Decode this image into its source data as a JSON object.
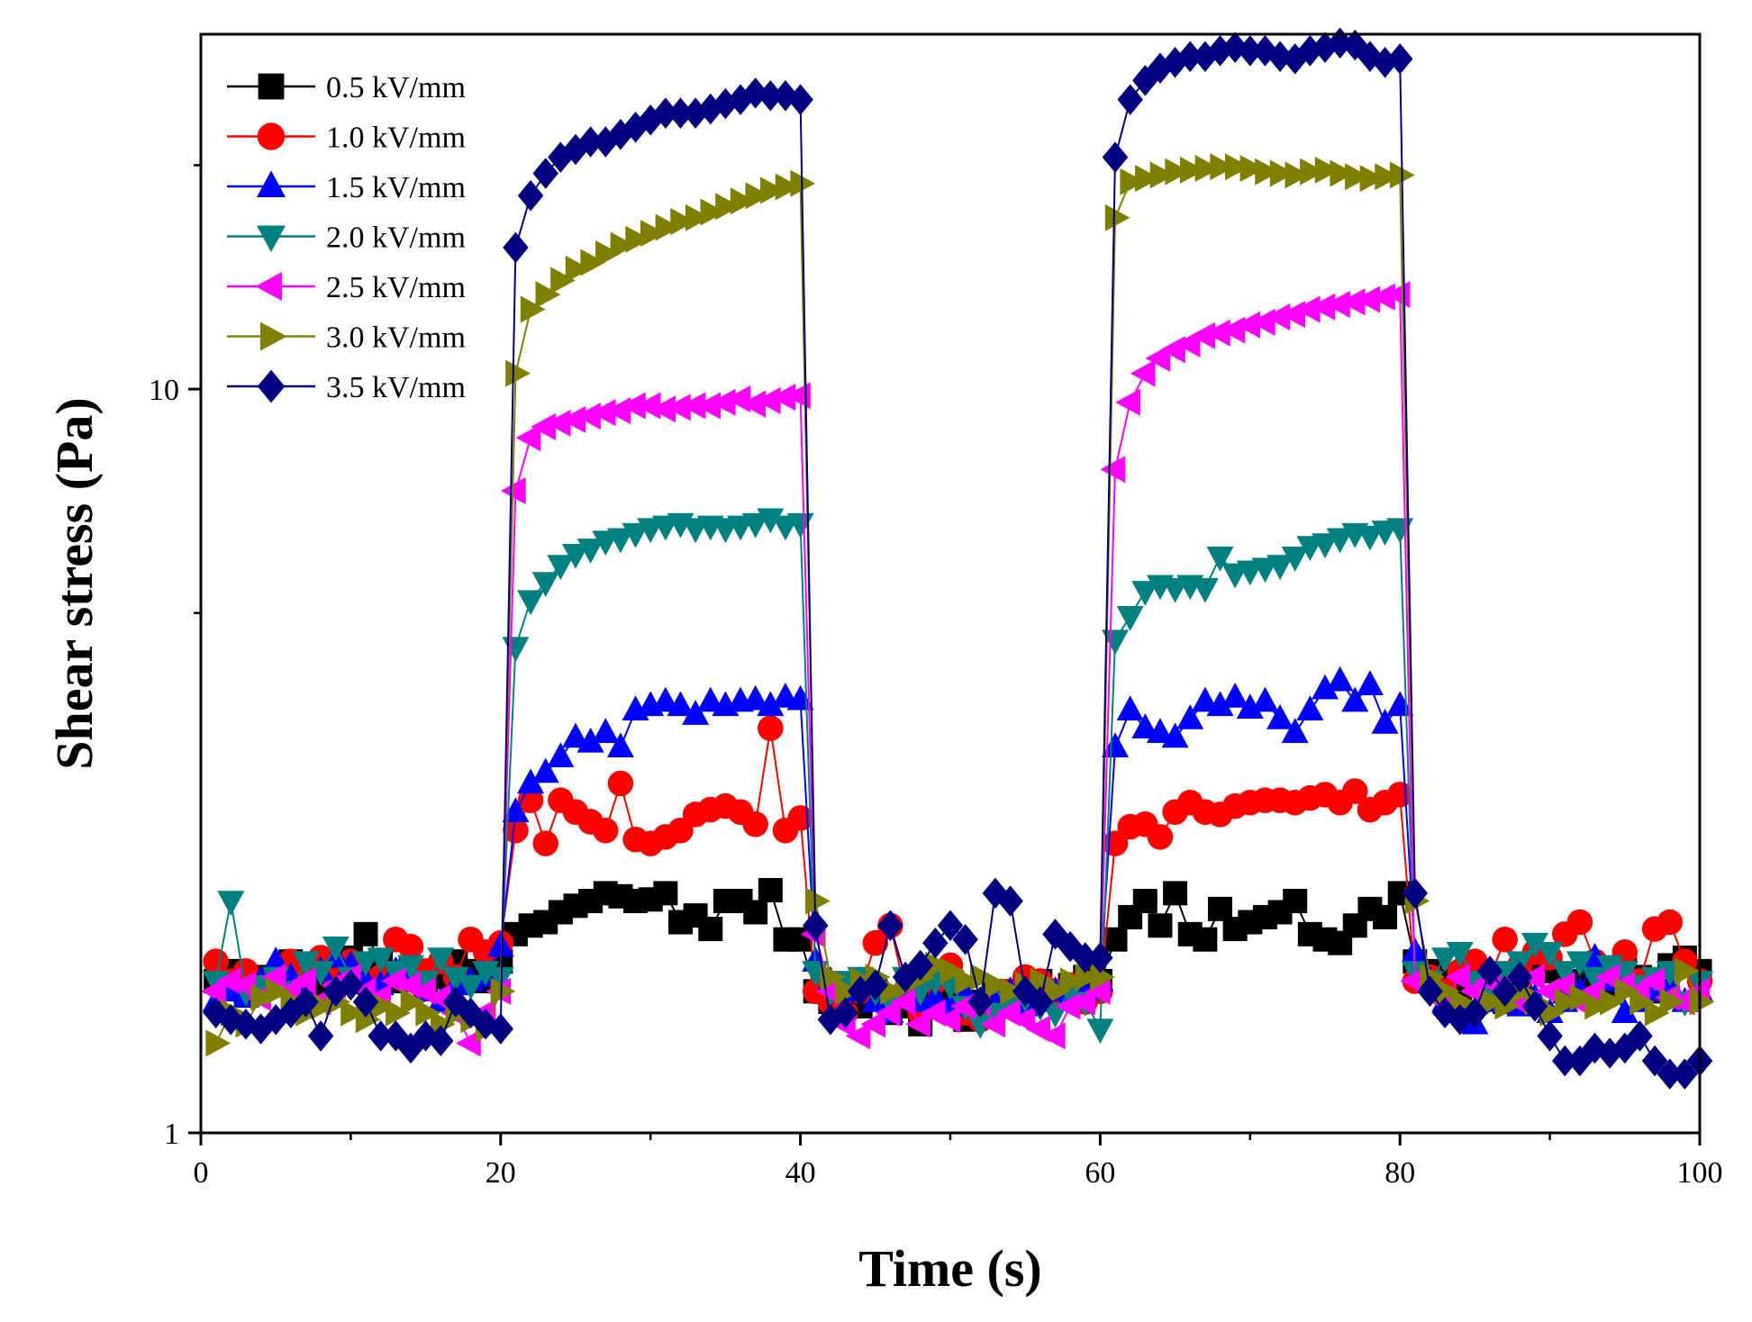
{
  "chart_data": {
    "type": "line",
    "title": "",
    "xlabel": "Time (s)",
    "ylabel": "Shear stress (Pa)",
    "xlim": [
      0,
      100
    ],
    "ylim": [
      1,
      30
    ],
    "yscale": "log",
    "xticks": [
      0,
      20,
      40,
      60,
      80,
      100
    ],
    "xtick_labels": [
      "0",
      "20",
      "40",
      "60",
      "80",
      "100"
    ],
    "yticks": [
      1,
      10
    ],
    "ytick_labels": [
      "1",
      "10"
    ],
    "grid": false,
    "legend_position": "top-left",
    "x": [
      1,
      2,
      3,
      4,
      5,
      6,
      7,
      8,
      9,
      10,
      11,
      12,
      13,
      14,
      15,
      16,
      17,
      18,
      19,
      20,
      21,
      22,
      23,
      24,
      25,
      26,
      27,
      28,
      29,
      30,
      31,
      32,
      33,
      34,
      35,
      36,
      37,
      38,
      39,
      40,
      41,
      42,
      43,
      44,
      45,
      46,
      47,
      48,
      49,
      50,
      51,
      52,
      53,
      54,
      55,
      56,
      57,
      58,
      59,
      60,
      61,
      62,
      63,
      64,
      65,
      66,
      67,
      68,
      69,
      70,
      71,
      72,
      73,
      74,
      75,
      76,
      77,
      78,
      79,
      80,
      81,
      82,
      83,
      84,
      85,
      86,
      87,
      88,
      89,
      90,
      91,
      92,
      93,
      94,
      95,
      96,
      97,
      98,
      99,
      100
    ],
    "series": [
      {
        "name": "0.5 kV/mm",
        "color": "#000000",
        "marker": "square",
        "values": [
          1.6,
          1.65,
          1.55,
          1.62,
          1.58,
          1.7,
          1.64,
          1.56,
          1.68,
          1.72,
          1.85,
          1.7,
          1.6,
          1.66,
          1.58,
          1.62,
          1.7,
          1.65,
          1.6,
          1.7,
          1.85,
          1.9,
          1.92,
          1.98,
          2.02,
          2.05,
          2.1,
          2.08,
          2.05,
          2.06,
          2.1,
          1.92,
          1.96,
          1.88,
          2.05,
          2.05,
          1.98,
          2.12,
          1.82,
          1.82,
          1.55,
          1.5,
          1.52,
          1.48,
          1.55,
          1.45,
          1.48,
          1.4,
          1.5,
          1.52,
          1.42,
          1.5,
          1.55,
          1.48,
          1.52,
          1.6,
          1.55,
          1.58,
          1.62,
          1.6,
          1.82,
          1.95,
          2.05,
          1.9,
          2.1,
          1.85,
          1.82,
          2.0,
          1.88,
          1.92,
          1.95,
          1.98,
          2.05,
          1.85,
          1.82,
          1.8,
          1.9,
          2.0,
          1.95,
          2.1,
          1.7,
          1.65,
          1.6,
          1.55,
          1.62,
          1.58,
          1.5,
          1.62,
          1.7,
          1.65,
          1.55,
          1.6,
          1.66,
          1.58,
          1.7,
          1.62,
          1.55,
          1.68,
          1.72,
          1.65
        ]
      },
      {
        "name": "1.0 kV/mm",
        "color": "#ff0000",
        "marker": "circle",
        "values": [
          1.7,
          1.6,
          1.65,
          1.58,
          1.62,
          1.7,
          1.68,
          1.72,
          1.62,
          1.7,
          1.6,
          1.62,
          1.82,
          1.78,
          1.65,
          1.7,
          1.62,
          1.82,
          1.75,
          1.8,
          2.55,
          2.8,
          2.45,
          2.8,
          2.7,
          2.62,
          2.55,
          2.95,
          2.48,
          2.45,
          2.5,
          2.55,
          2.68,
          2.72,
          2.75,
          2.7,
          2.6,
          3.5,
          2.55,
          2.65,
          1.55,
          1.5,
          1.45,
          1.55,
          1.8,
          1.9,
          1.55,
          1.45,
          1.6,
          1.68,
          1.45,
          1.42,
          1.5,
          1.55,
          1.62,
          1.6,
          1.55,
          1.58,
          1.5,
          1.55,
          2.45,
          2.58,
          2.6,
          2.5,
          2.7,
          2.78,
          2.7,
          2.68,
          2.75,
          2.78,
          2.8,
          2.8,
          2.78,
          2.82,
          2.85,
          2.78,
          2.88,
          2.72,
          2.78,
          2.85,
          1.6,
          1.62,
          1.55,
          1.65,
          1.7,
          1.62,
          1.82,
          1.68,
          1.75,
          1.72,
          1.85,
          1.92,
          1.7,
          1.65,
          1.75,
          1.6,
          1.88,
          1.92,
          1.7,
          1.6
        ]
      },
      {
        "name": "1.5 kV/mm",
        "color": "#0000ff",
        "marker": "triangle-up",
        "values": [
          1.5,
          1.55,
          1.52,
          1.6,
          1.7,
          1.62,
          1.55,
          1.65,
          1.72,
          1.68,
          1.6,
          1.58,
          1.65,
          1.62,
          1.55,
          1.5,
          1.58,
          1.6,
          1.62,
          1.78,
          2.7,
          2.95,
          3.05,
          3.2,
          3.4,
          3.35,
          3.45,
          3.3,
          3.7,
          3.75,
          3.8,
          3.75,
          3.65,
          3.8,
          3.75,
          3.8,
          3.82,
          3.75,
          3.85,
          3.82,
          1.7,
          1.6,
          1.55,
          1.6,
          1.5,
          1.45,
          1.55,
          1.5,
          1.52,
          1.48,
          1.55,
          1.5,
          1.52,
          1.55,
          1.48,
          1.5,
          1.55,
          1.52,
          1.55,
          1.6,
          3.3,
          3.7,
          3.5,
          3.45,
          3.4,
          3.6,
          3.8,
          3.75,
          3.85,
          3.72,
          3.8,
          3.6,
          3.45,
          3.7,
          3.95,
          4.05,
          3.8,
          4.0,
          3.55,
          3.75,
          1.75,
          1.6,
          1.5,
          1.45,
          1.4,
          1.5,
          1.55,
          1.48,
          1.52,
          1.45,
          1.5,
          1.55,
          1.72,
          1.6,
          1.45,
          1.5,
          1.55,
          1.58,
          1.5,
          1.55
        ]
      },
      {
        "name": "2.0 kV/mm",
        "color": "#008080",
        "marker": "triangle-down",
        "values": [
          1.6,
          2.05,
          1.55,
          1.58,
          1.62,
          1.55,
          1.7,
          1.65,
          1.78,
          1.62,
          1.7,
          1.72,
          1.65,
          1.68,
          1.6,
          1.72,
          1.62,
          1.58,
          1.65,
          1.62,
          4.5,
          5.2,
          5.5,
          5.8,
          6.0,
          6.1,
          6.25,
          6.3,
          6.4,
          6.5,
          6.55,
          6.6,
          6.5,
          6.55,
          6.5,
          6.55,
          6.6,
          6.7,
          6.55,
          6.6,
          1.65,
          1.55,
          1.6,
          1.62,
          1.55,
          1.5,
          1.62,
          1.55,
          1.6,
          1.58,
          1.48,
          1.4,
          1.45,
          1.5,
          1.52,
          1.48,
          1.45,
          1.55,
          1.5,
          1.38,
          4.6,
          4.95,
          5.35,
          5.45,
          5.4,
          5.45,
          5.4,
          5.95,
          5.65,
          5.7,
          5.75,
          5.8,
          5.95,
          6.15,
          6.2,
          6.3,
          6.4,
          6.35,
          6.45,
          6.5,
          1.65,
          1.6,
          1.72,
          1.75,
          1.6,
          1.55,
          1.65,
          1.7,
          1.8,
          1.75,
          1.65,
          1.7,
          1.62,
          1.68,
          1.65,
          1.58,
          1.62,
          1.65,
          1.5,
          1.6
        ]
      },
      {
        "name": "2.5 kV/mm",
        "color": "#ff00ff",
        "marker": "triangle-left",
        "values": [
          1.55,
          1.6,
          1.58,
          1.52,
          1.62,
          1.55,
          1.6,
          1.5,
          1.58,
          1.62,
          1.55,
          1.52,
          1.6,
          1.58,
          1.55,
          1.52,
          1.45,
          1.32,
          1.45,
          1.55,
          7.3,
          8.6,
          8.9,
          9.0,
          9.1,
          9.2,
          9.3,
          9.35,
          9.5,
          9.5,
          9.4,
          9.45,
          9.5,
          9.5,
          9.6,
          9.7,
          9.55,
          9.65,
          9.75,
          9.8,
          1.85,
          1.55,
          1.4,
          1.35,
          1.4,
          1.45,
          1.5,
          1.4,
          1.45,
          1.42,
          1.48,
          1.5,
          1.4,
          1.45,
          1.42,
          1.38,
          1.35,
          1.48,
          1.5,
          1.55,
          7.8,
          9.6,
          10.5,
          11.0,
          11.3,
          11.5,
          11.8,
          11.9,
          12.0,
          12.2,
          12.3,
          12.5,
          12.6,
          12.8,
          12.9,
          13.0,
          13.1,
          13.2,
          13.3,
          13.4,
          1.6,
          1.55,
          1.5,
          1.62,
          1.55,
          1.6,
          1.58,
          1.5,
          1.62,
          1.55,
          1.58,
          1.5,
          1.55,
          1.62,
          1.58,
          1.55,
          1.6,
          1.52,
          1.5,
          1.55
        ]
      },
      {
        "name": "3.0 kV/mm",
        "color": "#808000",
        "marker": "triangle-right",
        "values": [
          1.32,
          1.45,
          1.4,
          1.52,
          1.55,
          1.5,
          1.45,
          1.48,
          1.5,
          1.45,
          1.42,
          1.48,
          1.45,
          1.5,
          1.45,
          1.4,
          1.45,
          1.42,
          1.38,
          1.55,
          10.5,
          12.8,
          13.4,
          14.0,
          14.5,
          14.8,
          15.2,
          15.6,
          15.9,
          16.2,
          16.5,
          16.8,
          17.0,
          17.3,
          17.6,
          17.9,
          18.2,
          18.5,
          18.7,
          18.9,
          2.05,
          1.62,
          1.55,
          1.6,
          1.62,
          1.55,
          1.58,
          1.62,
          1.68,
          1.65,
          1.6,
          1.62,
          1.58,
          1.55,
          1.58,
          1.6,
          1.55,
          1.6,
          1.62,
          1.62,
          17.0,
          19.0,
          19.2,
          19.4,
          19.6,
          19.7,
          19.8,
          19.9,
          19.9,
          19.8,
          19.6,
          19.5,
          19.4,
          19.6,
          19.7,
          19.5,
          19.3,
          19.2,
          19.3,
          19.4,
          2.05,
          1.62,
          1.55,
          1.5,
          1.45,
          1.5,
          1.48,
          1.55,
          1.5,
          1.45,
          1.5,
          1.52,
          1.48,
          1.5,
          1.55,
          1.5,
          1.45,
          1.5,
          1.65,
          1.5
        ]
      },
      {
        "name": "3.5 kV/mm",
        "color": "#000080",
        "marker": "diamond",
        "values": [
          1.45,
          1.42,
          1.4,
          1.38,
          1.42,
          1.45,
          1.5,
          1.35,
          1.55,
          1.58,
          1.5,
          1.35,
          1.35,
          1.3,
          1.35,
          1.33,
          1.5,
          1.45,
          1.4,
          1.38,
          15.5,
          18.2,
          19.5,
          20.5,
          21.0,
          21.5,
          21.5,
          22.0,
          22.5,
          23.0,
          23.5,
          23.5,
          23.5,
          23.8,
          24.2,
          24.5,
          25.0,
          24.8,
          24.8,
          24.5,
          1.9,
          1.42,
          1.45,
          1.55,
          1.58,
          1.9,
          1.62,
          1.68,
          1.8,
          1.9,
          1.82,
          1.5,
          2.1,
          2.05,
          1.55,
          1.5,
          1.85,
          1.78,
          1.72,
          1.72,
          20.5,
          24.5,
          26.0,
          27.0,
          27.5,
          28.0,
          28.0,
          28.5,
          28.8,
          28.5,
          28.5,
          28.0,
          27.8,
          28.5,
          28.8,
          29.2,
          29.0,
          28.0,
          27.5,
          27.8,
          2.1,
          1.55,
          1.45,
          1.42,
          1.45,
          1.65,
          1.55,
          1.62,
          1.48,
          1.35,
          1.25,
          1.25,
          1.3,
          1.28,
          1.3,
          1.35,
          1.25,
          1.2,
          1.2,
          1.25
        ]
      }
    ]
  }
}
